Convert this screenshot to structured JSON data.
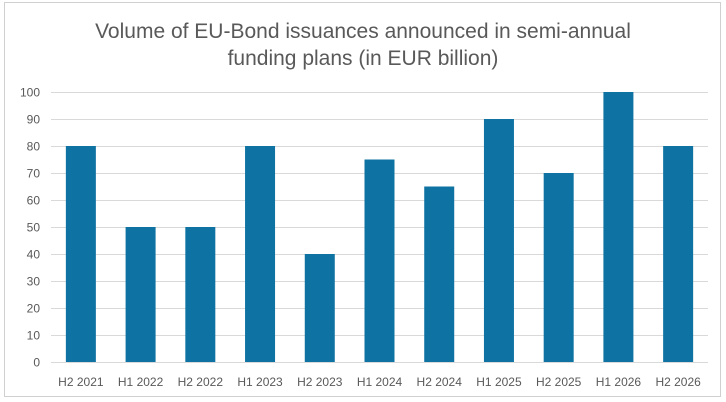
{
  "chart_data": {
    "type": "bar",
    "title_lines": [
      "Volume of EU-Bond issuances announced in semi-annual",
      "funding plans (in EUR billion)"
    ],
    "categories": [
      "H2 2021",
      "H1 2022",
      "H2 2022",
      "H1 2023",
      "H2 2023",
      "H1 2024",
      "H2 2024",
      "H1 2025",
      "H2 2025",
      "H1 2026",
      "H2 2026"
    ],
    "values": [
      80,
      50,
      50,
      80,
      40,
      75,
      65,
      90,
      70,
      100,
      80
    ],
    "ylim": [
      0,
      100
    ],
    "yticks": [
      0,
      10,
      20,
      30,
      40,
      50,
      60,
      70,
      80,
      90,
      100
    ],
    "grid": true,
    "legend": "none",
    "bar_color": "#0e73a2",
    "grid_color": "#d9d9d9",
    "text_color": "#595959"
  }
}
